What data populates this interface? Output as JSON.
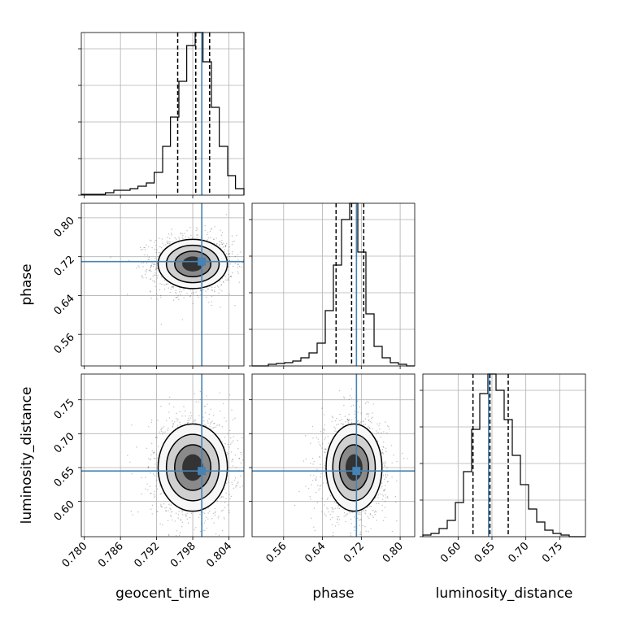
{
  "chart_data": {
    "type": "corner",
    "parameters": [
      "geocent_time",
      "phase",
      "luminosity_distance"
    ],
    "truths": {
      "geocent_time": 0.7995,
      "phase": 0.71,
      "luminosity_distance": 0.645
    },
    "colors": {
      "truth": "#4682b4",
      "hist": "#000000",
      "grid": "#b0b0b0"
    },
    "grid": true,
    "axis_ranges": {
      "geocent_time": [
        0.7795,
        0.8065
      ],
      "phase": [
        0.495,
        0.83
      ],
      "luminosity_distance": [
        0.548,
        0.788
      ]
    },
    "ticks": {
      "geocent_time": [
        0.78,
        0.786,
        0.792,
        0.798,
        0.804
      ],
      "phase": [
        0.56,
        0.64,
        0.72,
        0.8
      ],
      "luminosity_distance": [
        0.6,
        0.65,
        0.7,
        0.75
      ]
    },
    "tick_labels": {
      "geocent_time": [
        "0.780",
        "0.786",
        "0.792",
        "0.798",
        "0.804"
      ],
      "phase": [
        "0.56",
        "0.64",
        "0.72",
        "0.80"
      ],
      "luminosity_distance": [
        "0.60",
        "0.65",
        "0.70",
        "0.75"
      ]
    },
    "quantiles": {
      "geocent_time": [
        0.7955,
        0.7985,
        0.8008
      ],
      "phase": [
        0.668,
        0.7,
        0.725
      ],
      "luminosity_distance": [
        0.622,
        0.647,
        0.674
      ]
    },
    "histograms": {
      "geocent_time": {
        "edges": [
          0.7795,
          0.7808,
          0.7822,
          0.7835,
          0.7849,
          0.7862,
          0.7876,
          0.7889,
          0.7903,
          0.7916,
          0.793,
          0.7943,
          0.7957,
          0.797,
          0.7984,
          0.7997,
          0.8011,
          0.8024,
          0.8038,
          0.8051,
          0.8065
        ],
        "counts": [
          0.005,
          0.005,
          0.005,
          0.015,
          0.03,
          0.03,
          0.04,
          0.055,
          0.075,
          0.14,
          0.3,
          0.48,
          0.7,
          0.92,
          1.0,
          0.82,
          0.54,
          0.3,
          0.12,
          0.04
        ]
      },
      "phase": {
        "edges": [
          0.495,
          0.5118,
          0.5285,
          0.5453,
          0.562,
          0.5788,
          0.5955,
          0.6123,
          0.629,
          0.6458,
          0.6625,
          0.6793,
          0.696,
          0.7128,
          0.7295,
          0.7463,
          0.763,
          0.7798,
          0.7965,
          0.8133,
          0.83
        ],
        "counts": [
          0.0,
          0.0,
          0.01,
          0.015,
          0.02,
          0.03,
          0.05,
          0.08,
          0.14,
          0.34,
          0.62,
          0.9,
          1.0,
          0.7,
          0.32,
          0.12,
          0.05,
          0.02,
          0.01,
          0.0
        ]
      },
      "luminosity_distance": {
        "edges": [
          0.548,
          0.56,
          0.572,
          0.584,
          0.596,
          0.608,
          0.62,
          0.632,
          0.644,
          0.656,
          0.668,
          0.68,
          0.692,
          0.704,
          0.716,
          0.728,
          0.74,
          0.752,
          0.764,
          0.776,
          0.788
        ],
        "counts": [
          0.01,
          0.02,
          0.05,
          0.1,
          0.21,
          0.4,
          0.66,
          0.88,
          1.0,
          0.9,
          0.72,
          0.5,
          0.32,
          0.17,
          0.09,
          0.04,
          0.02,
          0.01,
          0.0,
          0.0
        ]
      }
    },
    "posterior_2d": {
      "geocent_time__phase": {
        "center_x": 0.798,
        "center_y": 0.705,
        "sigma_x": 0.0025,
        "sigma_y": 0.022
      },
      "geocent_time__luminosity_distance": {
        "center_x": 0.798,
        "center_y": 0.65,
        "sigma_x": 0.0025,
        "sigma_y": 0.028
      },
      "phase__luminosity_distance": {
        "center_x": 0.705,
        "center_y": 0.65,
        "sigma_x": 0.025,
        "sigma_y": 0.028
      }
    }
  }
}
